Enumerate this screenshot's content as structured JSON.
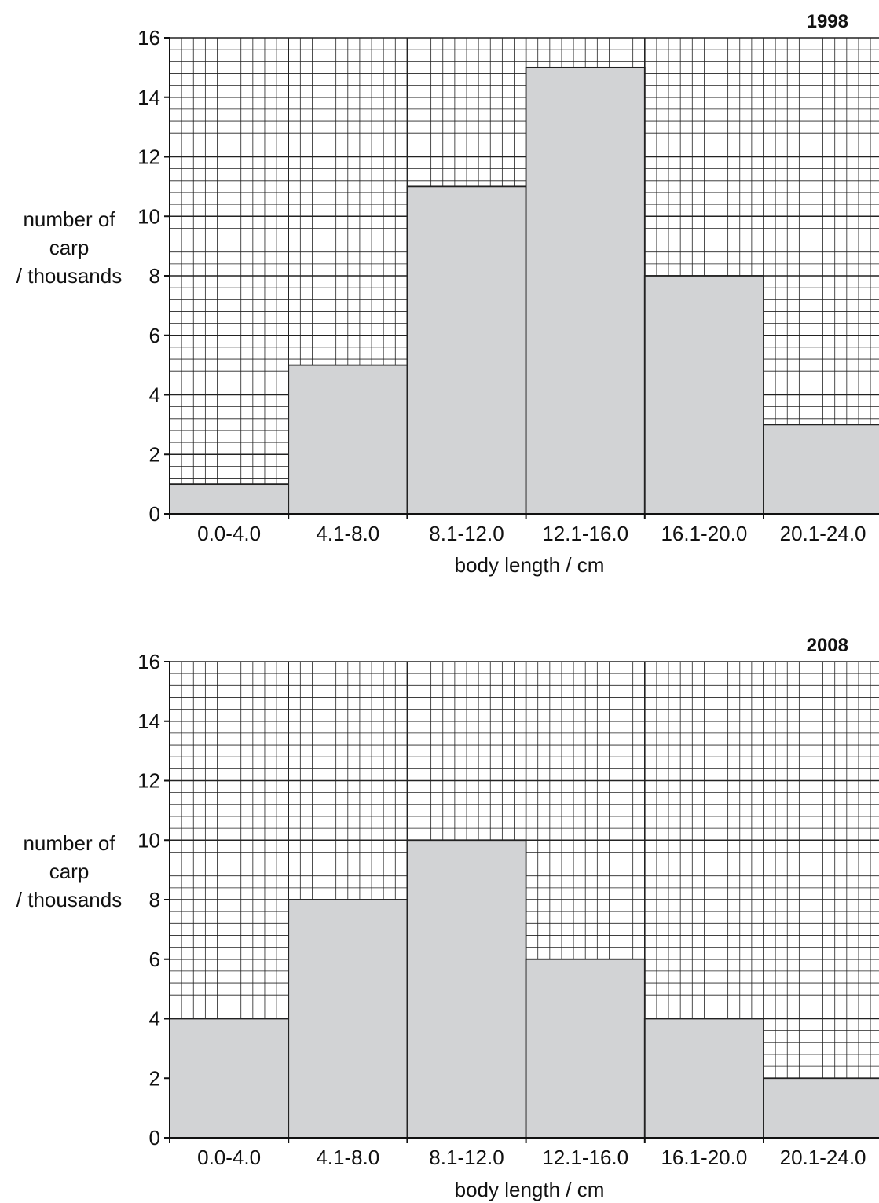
{
  "chart_data": [
    {
      "type": "bar",
      "title": "1998",
      "categories": [
        "0.0-4.0",
        "4.1-8.0",
        "8.1-12.0",
        "12.1-16.0",
        "16.1-20.0",
        "20.1-24.0"
      ],
      "values": [
        1,
        5,
        11,
        15,
        8,
        3
      ],
      "xlabel": "body length / cm",
      "ylabel": [
        "number of",
        "carp",
        "/ thousands"
      ],
      "ylim": [
        0,
        16
      ],
      "yticks": [
        0,
        2,
        4,
        6,
        8,
        10,
        12,
        14,
        16
      ],
      "grid": true,
      "bar_color": "#d2d3d5"
    },
    {
      "type": "bar",
      "title": "2008",
      "categories": [
        "0.0-4.0",
        "4.1-8.0",
        "8.1-12.0",
        "12.1-16.0",
        "16.1-20.0",
        "20.1-24.0"
      ],
      "values": [
        4,
        8,
        10,
        6,
        4,
        2
      ],
      "xlabel": "body length / cm",
      "ylabel": [
        "number of",
        "carp",
        "/ thousands"
      ],
      "ylim": [
        0,
        16
      ],
      "yticks": [
        0,
        2,
        4,
        6,
        8,
        10,
        12,
        14,
        16
      ],
      "grid": true,
      "bar_color": "#d2d3d5"
    }
  ]
}
